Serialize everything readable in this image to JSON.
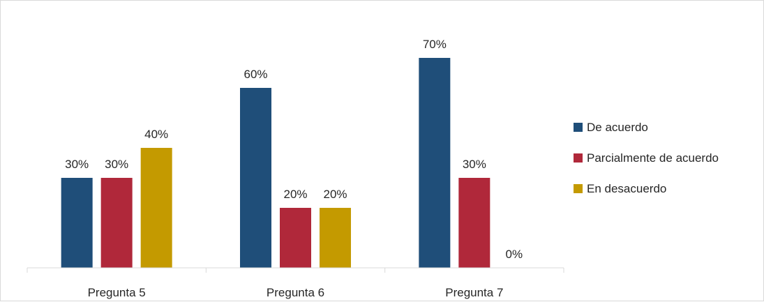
{
  "chart_data": {
    "type": "bar",
    "categories": [
      "Pregunta 5",
      "Pregunta 6",
      "Pregunta 7"
    ],
    "series": [
      {
        "name": "De acuerdo",
        "color": "#1f4e79",
        "values": [
          30,
          60,
          70
        ],
        "labels": [
          "30%",
          "60%",
          "70%"
        ]
      },
      {
        "name": "Parcialmente de acuerdo",
        "color": "#b0283a",
        "values": [
          30,
          20,
          30
        ],
        "labels": [
          "30%",
          "20%",
          "30%"
        ]
      },
      {
        "name": "En desacuerdo",
        "color": "#c49a00",
        "values": [
          40,
          20,
          0
        ],
        "labels": [
          "40%",
          "20%",
          "0%"
        ]
      }
    ],
    "ylim": [
      0,
      70
    ],
    "grid": false,
    "legend_position": "right",
    "title": "",
    "xlabel": "",
    "ylabel": ""
  }
}
